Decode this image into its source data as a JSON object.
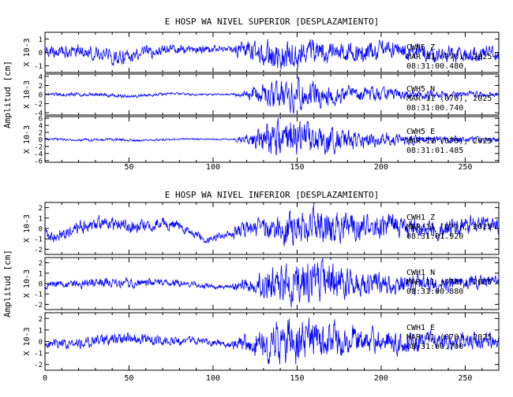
{
  "colors": {
    "trace": "#0000ff",
    "axes": "#000000",
    "background": "#ffffff"
  },
  "chart_data": [
    {
      "type": "line",
      "title": "E HOSP WA NIVEL SUPERIOR [DESPLAZAMIENTO]",
      "ylabel": "Amplitud [cm]",
      "xlim": [
        0,
        270
      ],
      "x_ticks": [
        "50",
        "100",
        "150",
        "200",
        "250"
      ],
      "grid": false,
      "legend": "none",
      "series": [
        {
          "name": "CWH5 Z",
          "station": "CWH5",
          "component": "Z",
          "date": "MAR 11 (070), 2025",
          "time": "08:31:00.480",
          "scale_label": "X 10-3",
          "ylim": [
            -1.5,
            1.5
          ],
          "y_ticks": [
            "1",
            "0",
            "-1"
          ],
          "low_amp": 0.4,
          "high_amp": 0.75,
          "drift": 0.5,
          "peak_x": 145
        },
        {
          "name": "CWH5 N",
          "station": "CWH5",
          "component": "N",
          "date": "MAR 11 (070), 2025",
          "time": "08:31:00.740",
          "scale_label": "X 10-3",
          "ylim": [
            -4.5,
            4.5
          ],
          "y_ticks": [
            "4",
            "2",
            "0",
            "-2",
            "-4"
          ],
          "low_amp": 0.3,
          "high_amp": 2.6,
          "drift": 0.3,
          "peak_x": 148
        },
        {
          "name": "CWH5 E",
          "station": "CWH5",
          "component": "E",
          "date": "MAR 11 (070), 2025",
          "time": "08:31:01.485",
          "scale_label": "X 10-3",
          "ylim": [
            -6.5,
            6.5
          ],
          "y_ticks": [
            "6",
            "4",
            "2",
            "0",
            "-2",
            "-4",
            "-6"
          ],
          "low_amp": 0.3,
          "high_amp": 4.2,
          "drift": 0.3,
          "peak_x": 146
        }
      ]
    },
    {
      "type": "line",
      "title": "E HOSP WA NIVEL INFERIOR [DESPLAZAMIENTO]",
      "ylabel": "Amplitud [cm]",
      "xlim": [
        0,
        270
      ],
      "x_ticks": [
        "0",
        "50",
        "100",
        "150",
        "200",
        "250"
      ],
      "grid": false,
      "legend": "none",
      "series": [
        {
          "name": "CWH1 Z",
          "station": "CWH1",
          "component": "Z",
          "date": "MAR 11 (070), 2025",
          "time": "08:31:01.920",
          "scale_label": "X 10-3",
          "ylim": [
            -2.5,
            2.5
          ],
          "y_ticks": [
            "2",
            "1",
            "0",
            "-1",
            "-2"
          ],
          "low_amp": 0.5,
          "high_amp": 1.3,
          "drift": 0.9,
          "peak_x": 160
        },
        {
          "name": "CWH1 N",
          "station": "CWH1",
          "component": "N",
          "date": "MAR 11 (070), 2025",
          "time": "08:31:00.880",
          "scale_label": "X 10-3",
          "ylim": [
            -2.5,
            2.5
          ],
          "y_ticks": [
            "2",
            "1",
            "0",
            "-1",
            "-2"
          ],
          "low_amp": 0.35,
          "high_amp": 1.6,
          "drift": 0.3,
          "peak_x": 155
        },
        {
          "name": "CWH1 E",
          "station": "CWH1",
          "component": "E",
          "date": "MAR 11 (070), 2025",
          "time": "08:31:00.700",
          "scale_label": "X 10-3",
          "ylim": [
            -2.5,
            2.5
          ],
          "y_ticks": [
            "2",
            "1",
            "0",
            "-1",
            "-2"
          ],
          "low_amp": 0.4,
          "high_amp": 1.5,
          "drift": 0.3,
          "peak_x": 150
        }
      ]
    }
  ]
}
